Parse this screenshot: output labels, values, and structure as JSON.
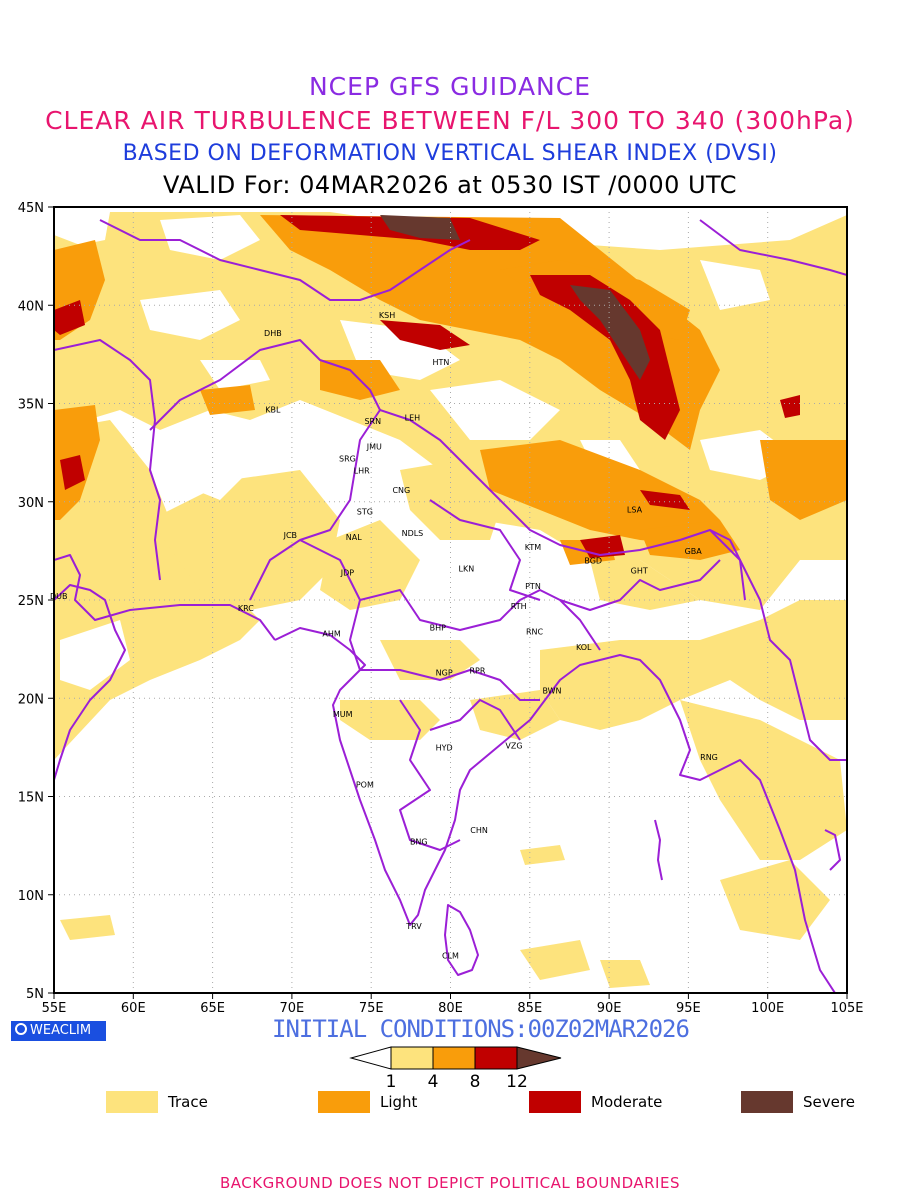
{
  "header": {
    "title": "NCEP GFS GUIDANCE",
    "subtitle": "CLEAR AIR TURBULENCE BETWEEN F/L 300 TO 340 (300hPa)",
    "index_line": "BASED ON DEFORMATION VERTICAL SHEAR INDEX (DVSI)",
    "valid_line": "VALID For: 04MAR2026 at 0530 IST /0000 UTC"
  },
  "axes": {
    "lat_labels": [
      "45N",
      "40N",
      "35N",
      "30N",
      "25N",
      "20N",
      "15N",
      "10N",
      "5N"
    ],
    "lon_labels": [
      "55E",
      "60E",
      "65E",
      "70E",
      "75E",
      "80E",
      "85E",
      "90E",
      "95E",
      "100E",
      "105E"
    ]
  },
  "stations": [
    {
      "code": "KSH",
      "lon": 76.0,
      "lat": 39.5
    },
    {
      "code": "DHB",
      "lon": 68.8,
      "lat": 38.6
    },
    {
      "code": "HTN",
      "lon": 79.4,
      "lat": 37.1
    },
    {
      "code": "KBL",
      "lon": 68.8,
      "lat": 34.7
    },
    {
      "code": "SRN",
      "lon": 75.1,
      "lat": 34.1
    },
    {
      "code": "LEH",
      "lon": 77.6,
      "lat": 34.3
    },
    {
      "code": "JMU",
      "lon": 75.2,
      "lat": 32.8
    },
    {
      "code": "SRG",
      "lon": 73.5,
      "lat": 32.2
    },
    {
      "code": "LHR",
      "lon": 74.4,
      "lat": 31.6
    },
    {
      "code": "CNG",
      "lon": 76.9,
      "lat": 30.6
    },
    {
      "code": "STG",
      "lon": 74.6,
      "lat": 29.5
    },
    {
      "code": "LSA",
      "lon": 91.6,
      "lat": 29.6
    },
    {
      "code": "JCB",
      "lon": 69.9,
      "lat": 28.3
    },
    {
      "code": "NAL",
      "lon": 73.9,
      "lat": 28.2
    },
    {
      "code": "NDLS",
      "lon": 77.6,
      "lat": 28.4
    },
    {
      "code": "KTM",
      "lon": 85.2,
      "lat": 27.7
    },
    {
      "code": "GBA",
      "lon": 95.3,
      "lat": 27.5
    },
    {
      "code": "BGD",
      "lon": 89.0,
      "lat": 27.0
    },
    {
      "code": "GHT",
      "lon": 91.9,
      "lat": 26.5
    },
    {
      "code": "JDP",
      "lon": 73.5,
      "lat": 26.4
    },
    {
      "code": "LKN",
      "lon": 81.0,
      "lat": 26.6
    },
    {
      "code": "PTN",
      "lon": 85.2,
      "lat": 25.7
    },
    {
      "code": "DUB",
      "lon": 55.3,
      "lat": 25.2
    },
    {
      "code": "RTH",
      "lon": 84.3,
      "lat": 24.7
    },
    {
      "code": "KRC",
      "lon": 67.1,
      "lat": 24.6
    },
    {
      "code": "BHP",
      "lon": 79.2,
      "lat": 23.6
    },
    {
      "code": "AHM",
      "lon": 72.5,
      "lat": 23.3
    },
    {
      "code": "RNC",
      "lon": 85.3,
      "lat": 23.4
    },
    {
      "code": "KOL",
      "lon": 88.4,
      "lat": 22.6
    },
    {
      "code": "NGP",
      "lon": 79.6,
      "lat": 21.3
    },
    {
      "code": "RPR",
      "lon": 81.7,
      "lat": 21.4
    },
    {
      "code": "BWN",
      "lon": 86.4,
      "lat": 20.4
    },
    {
      "code": "MUM",
      "lon": 73.2,
      "lat": 19.2
    },
    {
      "code": "HYD",
      "lon": 79.6,
      "lat": 17.5
    },
    {
      "code": "VZG",
      "lon": 84.0,
      "lat": 17.6
    },
    {
      "code": "RNG",
      "lon": 96.3,
      "lat": 17.0
    },
    {
      "code": "POM",
      "lon": 74.6,
      "lat": 15.6
    },
    {
      "code": "CHN",
      "lon": 81.8,
      "lat": 13.3
    },
    {
      "code": "BNG",
      "lon": 78.0,
      "lat": 12.7
    },
    {
      "code": "TRV",
      "lon": 77.7,
      "lat": 8.4
    },
    {
      "code": "CLM",
      "lon": 80.0,
      "lat": 6.9
    }
  ],
  "color_scale": {
    "thresholds": [
      "1",
      "4",
      "8",
      "12"
    ],
    "colors": [
      "#fde37d",
      "#f99d0b",
      "#c00000",
      "#66382e"
    ]
  },
  "legend": [
    {
      "label": "Trace",
      "color": "#fde37d"
    },
    {
      "label": "Light",
      "color": "#f99d0b"
    },
    {
      "label": "Moderate",
      "color": "#c00000"
    },
    {
      "label": "Severe",
      "color": "#66382e"
    }
  ],
  "brand": "WEACLIM",
  "initial_conditions": "INITIAL CONDITIONS:00Z02MAR2026",
  "footer": "BACKGROUND DOES NOT DEPICT POLITICAL BOUNDARIES",
  "map_colors": {
    "boundary": "#9b1fd6",
    "grid": "#aaaaaa"
  }
}
